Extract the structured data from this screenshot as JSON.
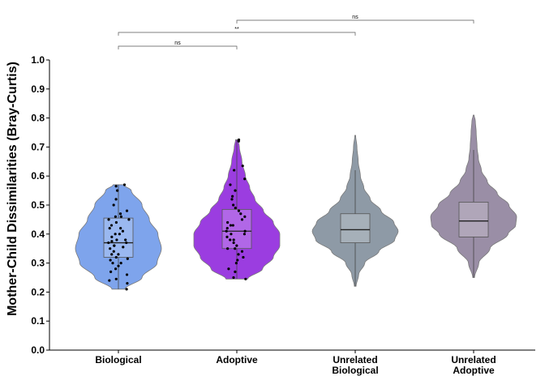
{
  "chart_data": {
    "type": "violin",
    "ylabel": "Mother-Child Dissimilarities (Bray-Curtis)",
    "ylim": [
      0.0,
      1.0
    ],
    "yticks": [
      "0.0",
      "0.1",
      "0.2",
      "0.3",
      "0.4",
      "0.5",
      "0.6",
      "0.7",
      "0.8",
      "0.9",
      "1.0"
    ],
    "grid": false,
    "groups": [
      {
        "label_lines": [
          "Biological"
        ],
        "color": "#7ea4ec",
        "violin_min": 0.21,
        "violin_max": 0.57,
        "density": [
          [
            0.21,
            0.15
          ],
          [
            0.25,
            0.55
          ],
          [
            0.3,
            0.9
          ],
          [
            0.35,
            1.0
          ],
          [
            0.4,
            0.92
          ],
          [
            0.45,
            0.72
          ],
          [
            0.5,
            0.55
          ],
          [
            0.55,
            0.3
          ],
          [
            0.57,
            0.12
          ]
        ],
        "box": {
          "lower_whisker": 0.21,
          "q1": 0.32,
          "median": 0.37,
          "q3": 0.455,
          "upper_whisker": 0.57
        },
        "points": [
          0.21,
          0.23,
          0.24,
          0.245,
          0.26,
          0.27,
          0.28,
          0.29,
          0.3,
          0.3,
          0.31,
          0.315,
          0.32,
          0.33,
          0.33,
          0.34,
          0.35,
          0.355,
          0.36,
          0.36,
          0.37,
          0.37,
          0.375,
          0.38,
          0.38,
          0.39,
          0.4,
          0.4,
          0.41,
          0.42,
          0.42,
          0.43,
          0.44,
          0.45,
          0.45,
          0.46,
          0.46,
          0.47,
          0.48,
          0.5,
          0.52,
          0.55,
          0.565,
          0.57
        ]
      },
      {
        "label_lines": [
          "Adoptive"
        ],
        "color": "#9b3de0",
        "violin_min": 0.245,
        "violin_max": 0.725,
        "density": [
          [
            0.245,
            0.25
          ],
          [
            0.28,
            0.6
          ],
          [
            0.32,
            0.85
          ],
          [
            0.36,
            1.0
          ],
          [
            0.4,
            1.0
          ],
          [
            0.44,
            0.85
          ],
          [
            0.48,
            0.62
          ],
          [
            0.52,
            0.42
          ],
          [
            0.56,
            0.3
          ],
          [
            0.6,
            0.2
          ],
          [
            0.65,
            0.12
          ],
          [
            0.7,
            0.06
          ],
          [
            0.725,
            0.03
          ]
        ],
        "box": {
          "lower_whisker": 0.245,
          "q1": 0.35,
          "median": 0.41,
          "q3": 0.485,
          "upper_whisker": 0.725
        },
        "points": [
          0.245,
          0.25,
          0.27,
          0.28,
          0.3,
          0.31,
          0.32,
          0.33,
          0.34,
          0.35,
          0.35,
          0.36,
          0.37,
          0.38,
          0.38,
          0.39,
          0.4,
          0.4,
          0.41,
          0.41,
          0.42,
          0.43,
          0.43,
          0.44,
          0.45,
          0.46,
          0.47,
          0.48,
          0.49,
          0.5,
          0.52,
          0.53,
          0.55,
          0.57,
          0.59,
          0.62,
          0.635,
          0.72,
          0.725
        ]
      },
      {
        "label_lines": [
          "Unrelated",
          "Biological"
        ],
        "color": "#8e9aa6",
        "violin_min": 0.22,
        "violin_max": 0.74,
        "density": [
          [
            0.22,
            0.02
          ],
          [
            0.26,
            0.08
          ],
          [
            0.3,
            0.22
          ],
          [
            0.34,
            0.55
          ],
          [
            0.38,
            0.92
          ],
          [
            0.41,
            1.0
          ],
          [
            0.44,
            0.9
          ],
          [
            0.48,
            0.6
          ],
          [
            0.52,
            0.35
          ],
          [
            0.56,
            0.2
          ],
          [
            0.6,
            0.12
          ],
          [
            0.65,
            0.07
          ],
          [
            0.7,
            0.04
          ],
          [
            0.74,
            0.01
          ]
        ],
        "box": {
          "lower_whisker": 0.22,
          "q1": 0.37,
          "median": 0.415,
          "q3": 0.47,
          "upper_whisker": 0.62
        },
        "points": []
      },
      {
        "label_lines": [
          "Unrelated",
          "Adoptive"
        ],
        "color": "#9a8ea6",
        "violin_min": 0.25,
        "violin_max": 0.81,
        "density": [
          [
            0.25,
            0.02
          ],
          [
            0.3,
            0.12
          ],
          [
            0.35,
            0.38
          ],
          [
            0.4,
            0.8
          ],
          [
            0.43,
            0.98
          ],
          [
            0.46,
            1.0
          ],
          [
            0.5,
            0.82
          ],
          [
            0.54,
            0.55
          ],
          [
            0.58,
            0.32
          ],
          [
            0.62,
            0.18
          ],
          [
            0.66,
            0.11
          ],
          [
            0.7,
            0.08
          ],
          [
            0.75,
            0.06
          ],
          [
            0.79,
            0.04
          ],
          [
            0.81,
            0.01
          ]
        ],
        "box": {
          "lower_whisker": 0.25,
          "q1": 0.39,
          "median": 0.445,
          "q3": 0.51,
          "upper_whisker": 0.69
        },
        "points": []
      }
    ],
    "significance": [
      {
        "from": 0,
        "to": 1,
        "label": "ns"
      },
      {
        "from": 0,
        "to": 2,
        "label": "**"
      },
      {
        "from": 1,
        "to": 3,
        "label": "ns"
      }
    ]
  }
}
